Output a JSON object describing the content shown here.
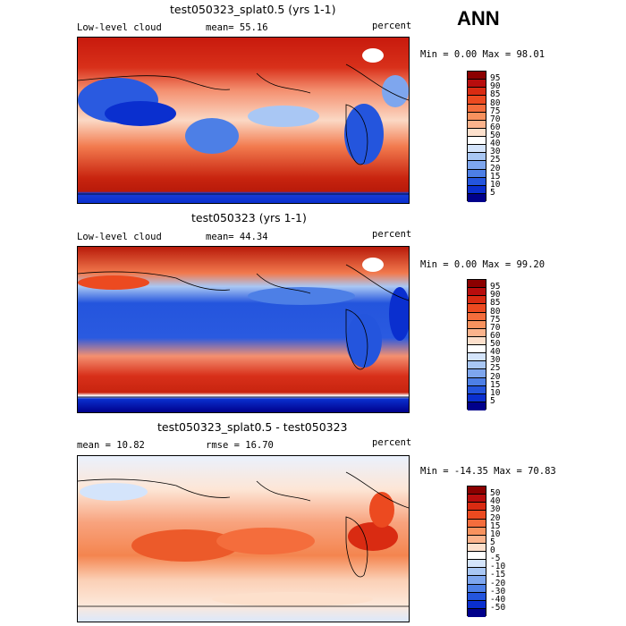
{
  "season": "ANN",
  "panels": [
    {
      "title": "test050323_splat0.5 (yrs 1-1)",
      "left_label": "Low-level cloud",
      "center_label": "mean=  55.16",
      "right_label": "percent",
      "minmax": "Min =   0.00 Max =  98.01",
      "colorbar": {
        "labels": [
          "95",
          "90",
          "85",
          "80",
          "75",
          "70",
          "60",
          "50",
          "40",
          "30",
          "25",
          "20",
          "15",
          "10",
          "5"
        ],
        "colors": [
          "#8b0000",
          "#b80d0d",
          "#d92b12",
          "#ec4a20",
          "#f46d3c",
          "#f8925e",
          "#fbb38c",
          "#fde0cc",
          "#ffffff",
          "#d4e4fb",
          "#a9c7f4",
          "#7ea6ee",
          "#4d7fe6",
          "#2455dd",
          "#0a2fcf",
          "#00008b"
        ]
      }
    },
    {
      "title": "test050323 (yrs 1-1)",
      "left_label": "Low-level cloud",
      "center_label": "mean=  44.34",
      "right_label": "percent",
      "minmax": "Min =   0.00 Max =  99.20",
      "colorbar": {
        "labels": [
          "95",
          "90",
          "85",
          "80",
          "75",
          "70",
          "60",
          "50",
          "40",
          "30",
          "25",
          "20",
          "15",
          "10",
          "5"
        ],
        "colors": [
          "#8b0000",
          "#b80d0d",
          "#d92b12",
          "#ec4a20",
          "#f46d3c",
          "#f8925e",
          "#fbb38c",
          "#fde0cc",
          "#ffffff",
          "#d4e4fb",
          "#a9c7f4",
          "#7ea6ee",
          "#4d7fe6",
          "#2455dd",
          "#0a2fcf",
          "#00008b"
        ]
      }
    },
    {
      "title": "test050323_splat0.5 - test050323",
      "left_label": "mean =  10.82",
      "center_label": "rmse =  16.70",
      "right_label": "percent",
      "minmax": "Min = -14.35 Max =  70.83",
      "colorbar": {
        "labels": [
          "50",
          "40",
          "30",
          "20",
          "15",
          "10",
          "5",
          "0",
          "-5",
          "-10",
          "-15",
          "-20",
          "-30",
          "-40",
          "-50"
        ],
        "colors": [
          "#8b0000",
          "#b80d0d",
          "#d92b12",
          "#ec4a20",
          "#f46d3c",
          "#f8925e",
          "#fbb38c",
          "#fde0cc",
          "#ffffff",
          "#d4e4fb",
          "#a9c7f4",
          "#7ea6ee",
          "#4d7fe6",
          "#2455dd",
          "#0a2fcf",
          "#00008b"
        ]
      }
    }
  ]
}
